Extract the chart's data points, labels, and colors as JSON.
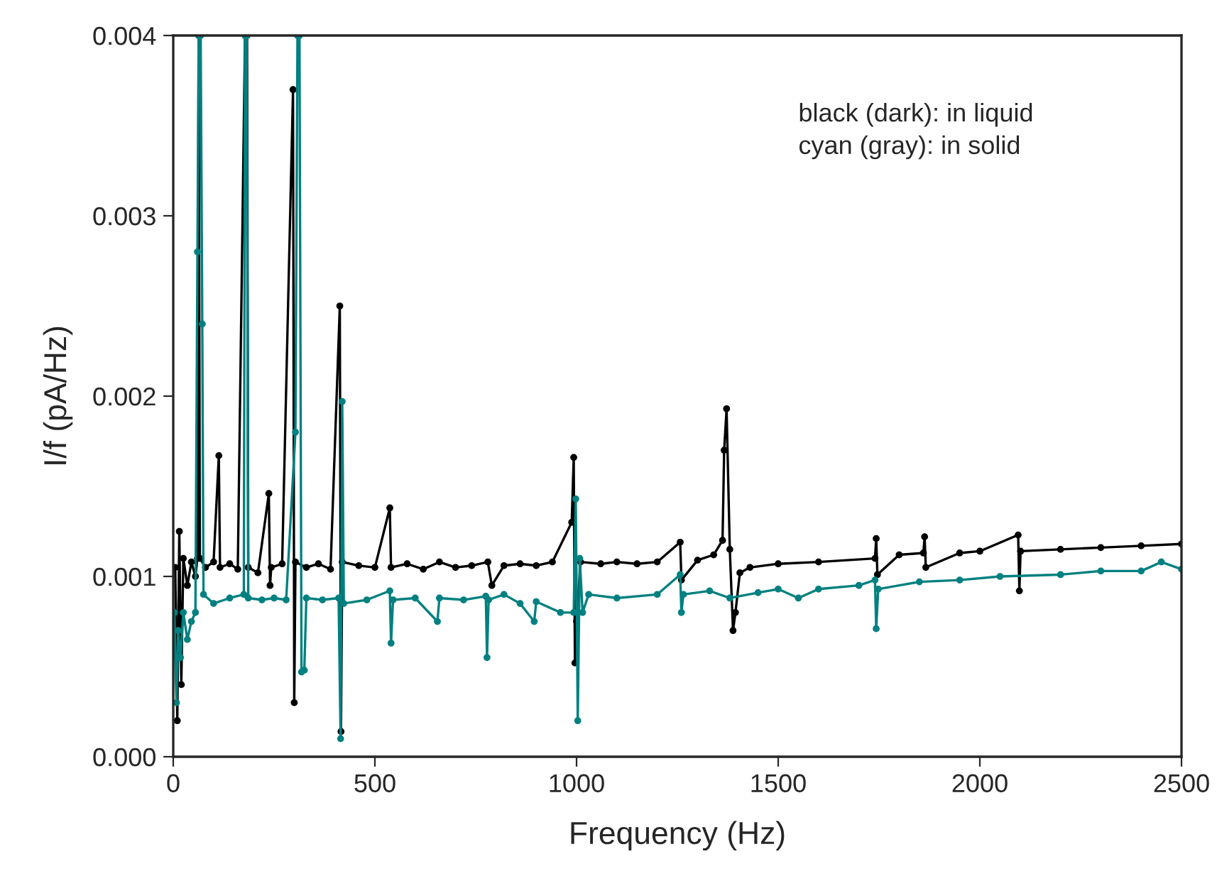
{
  "chart_data": {
    "type": "line",
    "xlabel": "Frequency (Hz)",
    "ylabel": "I/f (pA/Hz)",
    "annotations": [
      "black (dark): in liquid",
      "cyan (gray): in solid"
    ],
    "xlim": [
      0,
      2500
    ],
    "xticks": [
      0,
      500,
      1000,
      1500,
      2000,
      2500
    ],
    "ylim": [
      0,
      0.004
    ],
    "yticks": [
      {
        "value": 0,
        "label": "0.000"
      },
      {
        "value": 0.001,
        "label": "0.001"
      },
      {
        "value": 0.002,
        "label": "0.002"
      },
      {
        "value": 0.003,
        "label": "0.003"
      },
      {
        "value": 0.004,
        "label": "0.004"
      }
    ],
    "grid": false,
    "marker": "circle",
    "line_style": "solid",
    "series": [
      {
        "color": "#000000",
        "x": [
          5,
          10,
          15,
          20,
          25,
          35,
          45,
          55,
          60,
          63,
          66,
          80,
          100,
          113,
          116,
          140,
          160,
          178,
          183,
          186,
          210,
          237,
          240,
          243,
          270,
          297,
          300,
          303,
          330,
          360,
          390,
          413,
          416,
          419,
          460,
          500,
          537,
          540,
          580,
          620,
          660,
          700,
          740,
          780,
          790,
          820,
          860,
          900,
          940,
          988,
          993,
          996,
          1000,
          1010,
          1060,
          1100,
          1150,
          1200,
          1257,
          1260,
          1300,
          1340,
          1362,
          1366,
          1372,
          1380,
          1388,
          1394,
          1405,
          1430,
          1500,
          1600,
          1740,
          1743,
          1746,
          1800,
          1860,
          1863,
          1866,
          1950,
          2000,
          2095,
          2098,
          2101,
          2200,
          2300,
          2400,
          2500
        ],
        "values": [
          0.00105,
          0.0002,
          0.00125,
          0.0004,
          0.0011,
          0.00095,
          0.00108,
          0.001,
          0.0011,
          0.004,
          0.0011,
          0.00105,
          0.00108,
          0.00167,
          0.00105,
          0.00107,
          0.00104,
          0.004,
          0.004,
          0.00105,
          0.00102,
          0.00146,
          0.00095,
          0.00105,
          0.00107,
          0.0037,
          0.0003,
          0.00108,
          0.00105,
          0.00107,
          0.00104,
          0.0025,
          0.00014,
          0.00108,
          0.00106,
          0.00105,
          0.00138,
          0.00105,
          0.00107,
          0.00104,
          0.00108,
          0.00105,
          0.00106,
          0.00108,
          0.00095,
          0.00106,
          0.00107,
          0.00106,
          0.00108,
          0.0013,
          0.00166,
          0.00052,
          0.00075,
          0.00108,
          0.00107,
          0.00108,
          0.00107,
          0.00108,
          0.00119,
          0.00098,
          0.00109,
          0.00112,
          0.0012,
          0.0017,
          0.00193,
          0.00115,
          0.0007,
          0.0008,
          0.00102,
          0.00105,
          0.00107,
          0.00108,
          0.0011,
          0.00121,
          0.00101,
          0.00112,
          0.00113,
          0.00122,
          0.00105,
          0.00113,
          0.00114,
          0.00123,
          0.00092,
          0.00114,
          0.00115,
          0.00116,
          0.00117,
          0.00118
        ]
      },
      {
        "color": "#008080",
        "x": [
          3,
          5,
          8,
          12,
          18,
          25,
          35,
          45,
          55,
          60,
          63,
          68,
          72,
          75,
          100,
          140,
          175,
          178,
          182,
          186,
          220,
          250,
          280,
          303,
          308,
          313,
          318,
          325,
          330,
          370,
          410,
          415,
          419,
          423,
          480,
          537,
          540,
          545,
          600,
          655,
          660,
          720,
          775,
          778,
          782,
          820,
          860,
          895,
          900,
          960,
          993,
          998,
          1003,
          1008,
          1015,
          1030,
          1100,
          1200,
          1257,
          1260,
          1265,
          1330,
          1380,
          1450,
          1500,
          1550,
          1600,
          1700,
          1740,
          1743,
          1748,
          1850,
          1950,
          2050,
          2200,
          2300,
          2400,
          2450,
          2500
        ],
        "values": [
          0.0008,
          0.00055,
          0.0003,
          0.0007,
          0.00055,
          0.0008,
          0.00065,
          0.00075,
          0.0008,
          0.0028,
          0.004,
          0.004,
          0.0024,
          0.0009,
          0.00085,
          0.00088,
          0.0009,
          0.004,
          0.004,
          0.00088,
          0.00087,
          0.00088,
          0.00087,
          0.0018,
          0.004,
          0.004,
          0.00047,
          0.00048,
          0.00088,
          0.00087,
          0.00088,
          0.0001,
          0.00197,
          0.00085,
          0.00087,
          0.00092,
          0.00063,
          0.00087,
          0.00088,
          0.00075,
          0.00088,
          0.00087,
          0.00089,
          0.00055,
          0.00087,
          0.0009,
          0.00085,
          0.00075,
          0.00086,
          0.0008,
          0.0008,
          0.00143,
          0.0002,
          0.0011,
          0.0008,
          0.0009,
          0.00088,
          0.0009,
          0.00101,
          0.0008,
          0.0009,
          0.00092,
          0.00088,
          0.00091,
          0.00093,
          0.00088,
          0.00093,
          0.00095,
          0.00098,
          0.00071,
          0.00093,
          0.00097,
          0.00098,
          0.001,
          0.00101,
          0.00103,
          0.00103,
          0.00108,
          0.00104
        ]
      }
    ]
  }
}
